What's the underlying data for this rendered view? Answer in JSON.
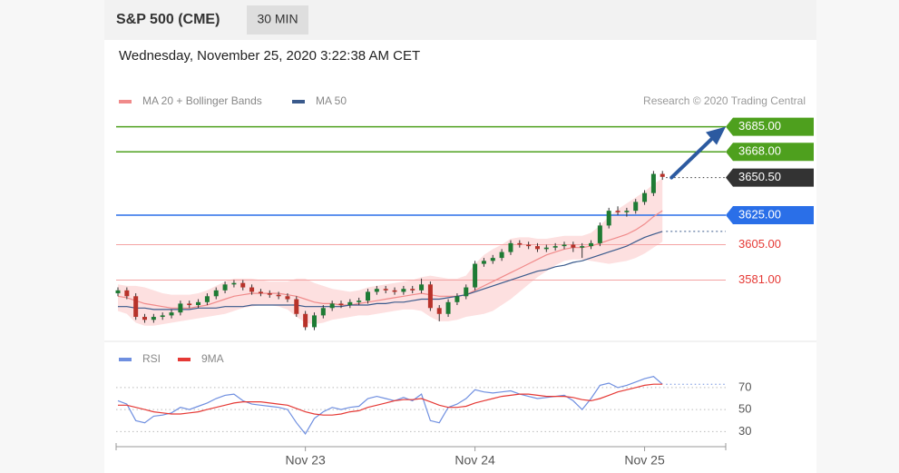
{
  "header": {
    "title": "S&P 500 (CME)",
    "interval": "30 MIN",
    "timestamp": "Wednesday, November 25, 2020 3:22:38 AM CET",
    "credit": "Research © 2020 Trading Central"
  },
  "chart_data": [
    {
      "type": "candlestick",
      "up_color": "#1e7b34",
      "down_color": "#b8322a",
      "ylim": [
        3540,
        3694
      ],
      "open": [
        3572,
        3574,
        3570,
        3556,
        3554,
        3556,
        3557,
        3559,
        3565,
        3564,
        3566,
        3570,
        3574,
        3578,
        3579,
        3576,
        3573,
        3572,
        3571,
        3570,
        3568,
        3558,
        3549,
        3557,
        3562,
        3565,
        3564,
        3566,
        3567,
        3573,
        3575,
        3574,
        3573,
        3575,
        3574,
        3578,
        3562,
        3558,
        3566,
        3570,
        3576,
        3592,
        3594,
        3596,
        3600,
        3606,
        3605,
        3604,
        3602,
        3603,
        3604,
        3605,
        3603,
        3604,
        3606,
        3618,
        3628,
        3627,
        3628,
        3634,
        3640,
        3653
      ],
      "high": [
        3576,
        3576,
        3572,
        3558,
        3558,
        3559,
        3561,
        3567,
        3567,
        3568,
        3572,
        3576,
        3580,
        3581,
        3581,
        3578,
        3575,
        3574,
        3573,
        3572,
        3570,
        3560,
        3559,
        3564,
        3567,
        3567,
        3568,
        3569,
        3575,
        3577,
        3577,
        3576,
        3577,
        3577,
        3582,
        3580,
        3564,
        3568,
        3572,
        3578,
        3594,
        3596,
        3598,
        3602,
        3608,
        3608,
        3607,
        3606,
        3605,
        3606,
        3607,
        3607,
        3606,
        3608,
        3620,
        3630,
        3631,
        3630,
        3636,
        3642,
        3655,
        3655
      ],
      "low": [
        3570,
        3568,
        3554,
        3552,
        3552,
        3554,
        3555,
        3557,
        3562,
        3562,
        3564,
        3568,
        3572,
        3576,
        3574,
        3571,
        3570,
        3569,
        3568,
        3566,
        3556,
        3547,
        3547,
        3555,
        3560,
        3562,
        3562,
        3564,
        3565,
        3571,
        3572,
        3571,
        3571,
        3572,
        3572,
        3560,
        3553,
        3556,
        3564,
        3568,
        3574,
        3590,
        3592,
        3594,
        3598,
        3603,
        3602,
        3600,
        3600,
        3601,
        3602,
        3600,
        3596,
        3602,
        3604,
        3616,
        3625,
        3624,
        3626,
        3632,
        3638,
        3649
      ],
      "close": [
        3574,
        3570,
        3556,
        3554,
        3556,
        3557,
        3559,
        3565,
        3564,
        3566,
        3570,
        3574,
        3578,
        3579,
        3576,
        3573,
        3572,
        3571,
        3570,
        3568,
        3558,
        3549,
        3557,
        3562,
        3565,
        3564,
        3566,
        3567,
        3573,
        3575,
        3574,
        3573,
        3575,
        3574,
        3578,
        3562,
        3558,
        3566,
        3570,
        3576,
        3592,
        3594,
        3596,
        3600,
        3606,
        3605,
        3604,
        3602,
        3603,
        3604,
        3605,
        3603,
        3604,
        3606,
        3618,
        3628,
        3627,
        3628,
        3634,
        3640,
        3653,
        3651
      ],
      "series": [
        {
          "name": "MA 20 + Bollinger Bands",
          "color": "#f08a8a",
          "band_color": "#fde0e0",
          "values": [
            3570,
            3569,
            3567,
            3565,
            3564,
            3563,
            3562,
            3562,
            3562,
            3563,
            3564,
            3566,
            3568,
            3570,
            3571,
            3572,
            3572,
            3572,
            3572,
            3571,
            3570,
            3568,
            3566,
            3565,
            3565,
            3564,
            3564,
            3565,
            3566,
            3567,
            3568,
            3569,
            3570,
            3571,
            3572,
            3571,
            3570,
            3570,
            3570,
            3571,
            3574,
            3577,
            3580,
            3583,
            3586,
            3589,
            3592,
            3595,
            3598,
            3600,
            3602,
            3603,
            3603,
            3604,
            3606,
            3608,
            3610,
            3612,
            3615,
            3619,
            3624,
            3628
          ],
          "upper": [
            3578,
            3577,
            3577,
            3576,
            3574,
            3572,
            3571,
            3571,
            3571,
            3572,
            3574,
            3577,
            3580,
            3582,
            3582,
            3582,
            3581,
            3580,
            3580,
            3580,
            3582,
            3582,
            3579,
            3577,
            3575,
            3574,
            3573,
            3574,
            3576,
            3577,
            3578,
            3579,
            3580,
            3581,
            3583,
            3584,
            3583,
            3582,
            3582,
            3584,
            3592,
            3598,
            3602,
            3605,
            3609,
            3610,
            3610,
            3609,
            3609,
            3610,
            3611,
            3611,
            3611,
            3613,
            3618,
            3624,
            3629,
            3633,
            3637,
            3641,
            3646,
            3650
          ],
          "lower": [
            3560,
            3558,
            3552,
            3550,
            3550,
            3551,
            3552,
            3553,
            3554,
            3555,
            3556,
            3557,
            3558,
            3560,
            3562,
            3563,
            3564,
            3564,
            3563,
            3561,
            3556,
            3552,
            3551,
            3552,
            3554,
            3555,
            3556,
            3557,
            3557,
            3558,
            3559,
            3560,
            3561,
            3561,
            3560,
            3556,
            3553,
            3553,
            3554,
            3556,
            3557,
            3558,
            3560,
            3564,
            3568,
            3573,
            3578,
            3583,
            3587,
            3591,
            3594,
            3595,
            3595,
            3594,
            3593,
            3592,
            3593,
            3594,
            3596,
            3599,
            3603,
            3607
          ]
        },
        {
          "name": "MA 50",
          "color": "#3a5a8c",
          "values": [
            3563,
            3563,
            3562,
            3562,
            3561,
            3561,
            3561,
            3561,
            3561,
            3562,
            3562,
            3562,
            3563,
            3563,
            3563,
            3564,
            3564,
            3564,
            3564,
            3564,
            3564,
            3563,
            3563,
            3563,
            3563,
            3563,
            3564,
            3564,
            3564,
            3565,
            3565,
            3566,
            3566,
            3567,
            3568,
            3568,
            3568,
            3569,
            3570,
            3571,
            3573,
            3575,
            3577,
            3579,
            3581,
            3583,
            3585,
            3587,
            3588,
            3590,
            3591,
            3593,
            3594,
            3596,
            3598,
            3600,
            3602,
            3604,
            3607,
            3610,
            3612,
            3614
          ]
        }
      ],
      "levels": [
        {
          "value": 3685,
          "label": "3685.00",
          "color": "#4ea01e",
          "boxed": true
        },
        {
          "value": 3668,
          "label": "3668.00",
          "color": "#4ea01e",
          "boxed": true
        },
        {
          "value": 3625,
          "label": "3625.00",
          "color": "#2a6fe8",
          "boxed": true
        },
        {
          "value": 3605,
          "label": "3605.00",
          "color": "#f4a3a3",
          "text_color": "#e53935",
          "boxed": false
        },
        {
          "value": 3581,
          "label": "3581.00",
          "color": "#f4a3a3",
          "text_color": "#e53935",
          "boxed": false
        }
      ],
      "current": {
        "value": 3650.5,
        "label": "3650.50",
        "color": "#333333"
      }
    },
    {
      "type": "line",
      "ylim": [
        18,
        88
      ],
      "yticks": [
        70,
        50,
        30
      ],
      "categories": [
        null,
        null,
        null,
        null,
        null,
        null,
        null,
        null,
        null,
        null,
        null,
        null,
        null,
        null,
        null,
        null,
        null,
        null,
        null,
        null,
        null,
        "Nov 23",
        null,
        null,
        null,
        null,
        null,
        null,
        null,
        null,
        null,
        null,
        null,
        null,
        null,
        null,
        null,
        null,
        null,
        null,
        "Nov 24",
        null,
        null,
        null,
        null,
        null,
        null,
        null,
        null,
        null,
        null,
        null,
        null,
        null,
        null,
        null,
        null,
        null,
        null,
        "Nov 25",
        null,
        null
      ],
      "series": [
        {
          "name": "RSI",
          "color": "#6f8fe0",
          "values": [
            58,
            55,
            40,
            38,
            44,
            45,
            47,
            52,
            50,
            53,
            56,
            60,
            63,
            64,
            58,
            55,
            54,
            53,
            52,
            50,
            38,
            28,
            42,
            48,
            52,
            50,
            52,
            53,
            60,
            62,
            60,
            58,
            61,
            58,
            64,
            40,
            38,
            52,
            55,
            60,
            68,
            66,
            65,
            66,
            67,
            64,
            62,
            60,
            61,
            62,
            63,
            58,
            50,
            60,
            72,
            74,
            70,
            72,
            75,
            78,
            80,
            73
          ]
        },
        {
          "name": "9MA",
          "color": "#e53935",
          "values": [
            54,
            54,
            52,
            50,
            48,
            47,
            46,
            46,
            47,
            48,
            50,
            52,
            54,
            56,
            57,
            57,
            57,
            56,
            55,
            54,
            51,
            48,
            46,
            45,
            45,
            46,
            48,
            49,
            52,
            54,
            56,
            58,
            59,
            59,
            60,
            57,
            54,
            52,
            52,
            53,
            56,
            58,
            60,
            62,
            63,
            64,
            64,
            63,
            62,
            62,
            62,
            61,
            59,
            58,
            60,
            63,
            66,
            68,
            70,
            72,
            73,
            73
          ]
        }
      ]
    }
  ]
}
